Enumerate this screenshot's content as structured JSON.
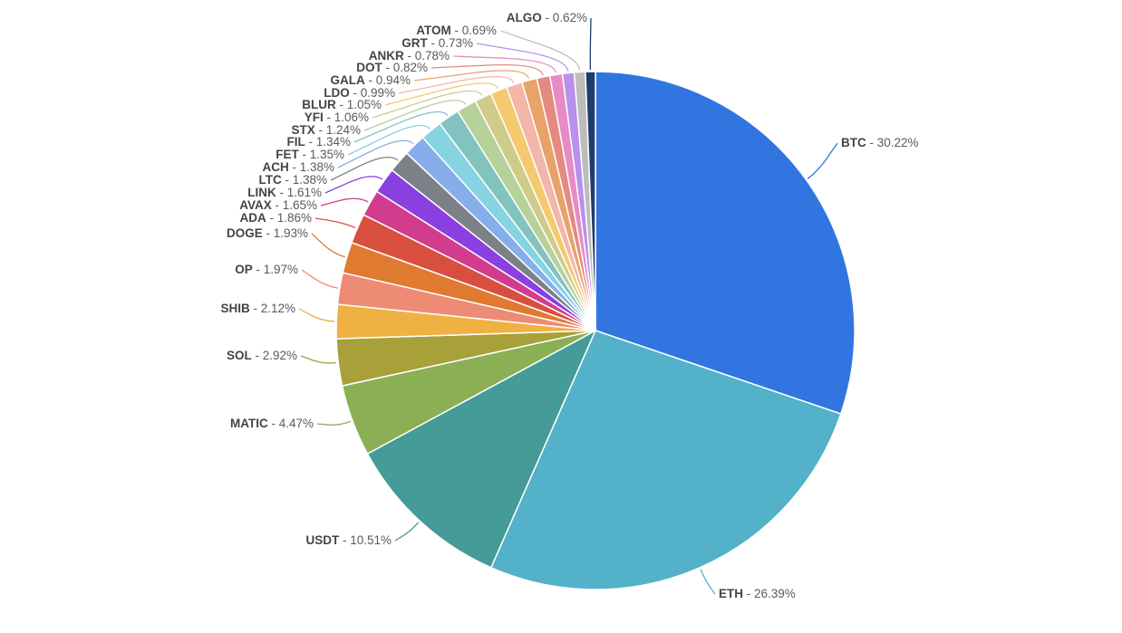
{
  "chart_data": {
    "type": "pie",
    "slices": [
      {
        "name": "BTC",
        "value": 30.22,
        "label": "BTC - 30.22%",
        "color": "#3176E0"
      },
      {
        "name": "ETH",
        "value": 26.39,
        "label": "ETH - 26.39%",
        "color": "#53B1C9"
      },
      {
        "name": "USDT",
        "value": 10.51,
        "label": "USDT - 10.51%",
        "color": "#449B98"
      },
      {
        "name": "MATIC",
        "value": 4.47,
        "label": "MATIC - 4.47%",
        "color": "#8AAF55"
      },
      {
        "name": "SOL",
        "value": 2.92,
        "label": "SOL - 2.92%",
        "color": "#A8A039"
      },
      {
        "name": "SHIB",
        "value": 2.12,
        "label": "SHIB - 2.12%",
        "color": "#F0B143"
      },
      {
        "name": "OP",
        "value": 1.97,
        "label": "OP - 1.97%",
        "color": "#EE8B75"
      },
      {
        "name": "DOGE",
        "value": 1.93,
        "label": "DOGE - 1.93%",
        "color": "#E07A30"
      },
      {
        "name": "ADA",
        "value": 1.86,
        "label": "ADA - 1.86%",
        "color": "#D94F3F"
      },
      {
        "name": "AVAX",
        "value": 1.65,
        "label": "AVAX - 1.65%",
        "color": "#D33B8E"
      },
      {
        "name": "LINK",
        "value": 1.61,
        "label": "LINK - 1.61%",
        "color": "#8A3FE0"
      },
      {
        "name": "LTC",
        "value": 1.38,
        "label": "LTC - 1.38%",
        "color": "#7C8187"
      },
      {
        "name": "ACH",
        "value": 1.38,
        "label": "ACH - 1.38%",
        "color": "#86AEEA"
      },
      {
        "name": "FET",
        "value": 1.35,
        "label": "FET - 1.35%",
        "color": "#86D3E2"
      },
      {
        "name": "FIL",
        "value": 1.34,
        "label": "FIL - 1.34%",
        "color": "#82C3BF"
      },
      {
        "name": "STX",
        "value": 1.24,
        "label": "STX - 1.24%",
        "color": "#B6D19A"
      },
      {
        "name": "YFI",
        "value": 1.06,
        "label": "YFI - 1.06%",
        "color": "#CFCC8A"
      },
      {
        "name": "BLUR",
        "value": 1.05,
        "label": "BLUR - 1.05%",
        "color": "#F5C96E"
      },
      {
        "name": "LDO",
        "value": 0.99,
        "label": "LDO - 0.99%",
        "color": "#F2B7A8"
      },
      {
        "name": "GALA",
        "value": 0.94,
        "label": "GALA - 0.94%",
        "color": "#E8A36B"
      },
      {
        "name": "DOT",
        "value": 0.82,
        "label": "DOT - 0.82%",
        "color": "#E58A80"
      },
      {
        "name": "ANKR",
        "value": 0.78,
        "label": "ANKR - 0.78%",
        "color": "#E78BC6"
      },
      {
        "name": "GRT",
        "value": 0.73,
        "label": "GRT - 0.73%",
        "color": "#B990EC"
      },
      {
        "name": "ATOM",
        "value": 0.69,
        "label": "ATOM - 0.69%",
        "color": "#BDBDBD"
      },
      {
        "name": "ALGO",
        "value": 0.62,
        "label": "ALGO - 0.62%",
        "color": "#1E3C6E"
      }
    ],
    "title": "",
    "legend": "none",
    "start_angle_deg": 0,
    "direction": "clockwise"
  }
}
